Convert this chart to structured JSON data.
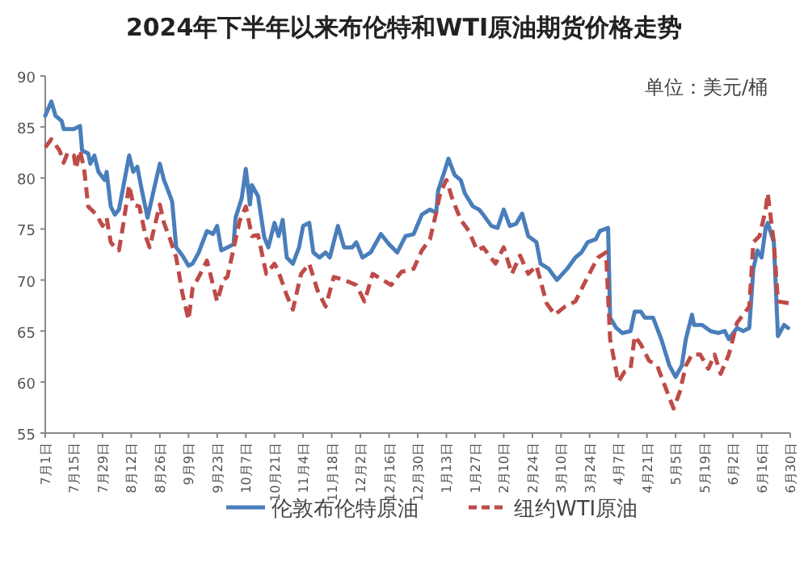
{
  "chart_data": {
    "type": "line",
    "title": "2024年下半年以来布伦特和WTI原油期货价格走势",
    "annotations": [
      "单位：美元/桶"
    ],
    "xlim": [
      "2024-07-01",
      "2025-06-30"
    ],
    "xticks": [
      {
        "value": "2024-07-01",
        "label": "7月1日"
      },
      {
        "value": "2024-07-15",
        "label": "7月15日"
      },
      {
        "value": "2024-07-29",
        "label": "7月29日"
      },
      {
        "value": "2024-08-12",
        "label": "8月12日"
      },
      {
        "value": "2024-08-26",
        "label": "8月26日"
      },
      {
        "value": "2024-09-09",
        "label": "9月9日"
      },
      {
        "value": "2024-09-23",
        "label": "9月23日"
      },
      {
        "value": "2024-10-07",
        "label": "10月7日"
      },
      {
        "value": "2024-10-21",
        "label": "10月21日"
      },
      {
        "value": "2024-11-04",
        "label": "11月4日"
      },
      {
        "value": "2024-11-18",
        "label": "11月18日"
      },
      {
        "value": "2024-12-02",
        "label": "12月2日"
      },
      {
        "value": "2024-12-16",
        "label": "12月16日"
      },
      {
        "value": "2024-12-30",
        "label": "12月30日"
      },
      {
        "value": "2025-01-13",
        "label": "1月13日"
      },
      {
        "value": "2025-01-27",
        "label": "1月27日"
      },
      {
        "value": "2025-02-10",
        "label": "2月10日"
      },
      {
        "value": "2025-02-24",
        "label": "2月24日"
      },
      {
        "value": "2025-03-10",
        "label": "3月10日"
      },
      {
        "value": "2025-03-24",
        "label": "3月24日"
      },
      {
        "value": "2025-04-07",
        "label": "4月7日"
      },
      {
        "value": "2025-04-21",
        "label": "4月21日"
      },
      {
        "value": "2025-05-05",
        "label": "5月5日"
      },
      {
        "value": "2025-05-19",
        "label": "5月19日"
      },
      {
        "value": "2025-06-02",
        "label": "6月2日"
      },
      {
        "value": "2025-06-16",
        "label": "6月16日"
      },
      {
        "value": "2025-06-30",
        "label": "6月30日"
      }
    ],
    "ylim": [
      55,
      90
    ],
    "yticks": [
      55,
      60,
      65,
      70,
      75,
      80,
      85,
      90
    ],
    "legend": "bottom",
    "series": [
      {
        "name": "伦敦布伦特原油",
        "color": "#4a7ebb",
        "line_style": "solid",
        "x": [
          "2024-07-01",
          "2024-07-04",
          "2024-07-06",
          "2024-07-09",
          "2024-07-10",
          "2024-07-15",
          "2024-07-18",
          "2024-07-19",
          "2024-07-22",
          "2024-07-23",
          "2024-07-25",
          "2024-07-27",
          "2024-07-30",
          "2024-07-31",
          "2024-08-02",
          "2024-08-04",
          "2024-08-06",
          "2024-08-08",
          "2024-08-11",
          "2024-08-13",
          "2024-08-15",
          "2024-08-17",
          "2024-08-20",
          "2024-08-23",
          "2024-08-26",
          "2024-08-28",
          "2024-08-29",
          "2024-09-01",
          "2024-09-03",
          "2024-09-06",
          "2024-09-09",
          "2024-09-11",
          "2024-09-14",
          "2024-09-18",
          "2024-09-21",
          "2024-09-23",
          "2024-09-25",
          "2024-09-28",
          "2024-10-01",
          "2024-10-02",
          "2024-10-05",
          "2024-10-07",
          "2024-10-09",
          "2024-10-10",
          "2024-10-13",
          "2024-10-16",
          "2024-10-18",
          "2024-10-21",
          "2024-10-23",
          "2024-10-25",
          "2024-10-27",
          "2024-10-30",
          "2024-11-02",
          "2024-11-04",
          "2024-11-07",
          "2024-11-09",
          "2024-11-12",
          "2024-11-15",
          "2024-11-17",
          "2024-11-21",
          "2024-11-24",
          "2024-11-28",
          "2024-11-30",
          "2024-12-03",
          "2024-12-07",
          "2024-12-12",
          "2024-12-16",
          "2024-12-20",
          "2024-12-24",
          "2024-12-28",
          "2025-01-01",
          "2025-01-05",
          "2025-01-08",
          "2025-01-09",
          "2025-01-12",
          "2025-01-14",
          "2025-01-17",
          "2025-01-20",
          "2025-01-22",
          "2025-01-26",
          "2025-01-29",
          "2025-01-31",
          "2025-02-04",
          "2025-02-07",
          "2025-02-10",
          "2025-02-13",
          "2025-02-16",
          "2025-02-19",
          "2025-02-22",
          "2025-02-26",
          "2025-02-28",
          "2025-03-04",
          "2025-03-08",
          "2025-03-13",
          "2025-03-17",
          "2025-03-20",
          "2025-03-23",
          "2025-03-27",
          "2025-03-29",
          "2025-04-02",
          "2025-04-03",
          "2025-04-06",
          "2025-04-09",
          "2025-04-13",
          "2025-04-15",
          "2025-04-18",
          "2025-04-20",
          "2025-04-24",
          "2025-04-28",
          "2025-05-02",
          "2025-05-05",
          "2025-05-08",
          "2025-05-10",
          "2025-05-13",
          "2025-05-14",
          "2025-05-18",
          "2025-05-22",
          "2025-05-26",
          "2025-05-29",
          "2025-05-31",
          "2025-06-04",
          "2025-06-07",
          "2025-06-10",
          "2025-06-12",
          "2025-06-14",
          "2025-06-16",
          "2025-06-18",
          "2025-06-19",
          "2025-06-22",
          "2025-06-24",
          "2025-06-27",
          "2025-06-29"
        ],
        "values": [
          86.1,
          87.5,
          86.1,
          85.6,
          84.8,
          84.8,
          85.1,
          82.7,
          82.4,
          81.4,
          82.2,
          80.6,
          79.8,
          80.6,
          77.2,
          76.4,
          76.9,
          79.0,
          82.2,
          80.6,
          81.1,
          79.0,
          76.1,
          78.8,
          81.4,
          79.8,
          79.3,
          77.7,
          73.2,
          72.4,
          71.4,
          71.6,
          72.7,
          74.8,
          74.5,
          75.3,
          72.9,
          73.2,
          73.5,
          76.1,
          78.0,
          80.9,
          77.4,
          79.3,
          78.2,
          74.2,
          73.2,
          75.6,
          74.3,
          75.9,
          72.2,
          71.6,
          73.2,
          75.3,
          75.6,
          72.7,
          72.2,
          72.7,
          72.2,
          75.3,
          73.2,
          73.2,
          73.7,
          72.2,
          72.7,
          74.5,
          73.5,
          72.7,
          74.3,
          74.5,
          76.4,
          76.9,
          76.6,
          78.8,
          80.6,
          81.9,
          80.3,
          79.8,
          78.5,
          77.2,
          76.9,
          76.4,
          75.3,
          75.1,
          76.9,
          75.3,
          75.5,
          76.5,
          74.3,
          73.7,
          71.6,
          71.1,
          70.0,
          71.1,
          72.2,
          72.7,
          73.7,
          74.0,
          74.8,
          75.1,
          66.3,
          65.3,
          64.8,
          65.0,
          66.9,
          66.9,
          66.3,
          66.3,
          64.2,
          61.6,
          60.5,
          61.6,
          64.2,
          66.6,
          65.6,
          65.6,
          65.0,
          64.8,
          65.0,
          64.2,
          65.3,
          65.0,
          65.3,
          71.1,
          72.9,
          72.2,
          75.1,
          75.6,
          73.7,
          64.5,
          65.6,
          65.3
        ]
      },
      {
        "name": "纽约WTI原油",
        "color": "#be4b48",
        "line_style": "dashed",
        "x": [
          "2024-07-01",
          "2024-07-04",
          "2024-07-08",
          "2024-07-10",
          "2024-07-12",
          "2024-07-15",
          "2024-07-16",
          "2024-07-18",
          "2024-07-20",
          "2024-07-22",
          "2024-07-26",
          "2024-07-29",
          "2024-07-31",
          "2024-08-02",
          "2024-08-04",
          "2024-08-06",
          "2024-08-08",
          "2024-08-11",
          "2024-08-13",
          "2024-08-16",
          "2024-08-19",
          "2024-08-21",
          "2024-08-26",
          "2024-08-28",
          "2024-08-31",
          "2024-09-03",
          "2024-09-06",
          "2024-09-09",
          "2024-09-11",
          "2024-09-14",
          "2024-09-18",
          "2024-09-23",
          "2024-09-26",
          "2024-09-28",
          "2024-10-04",
          "2024-10-07",
          "2024-10-10",
          "2024-10-13",
          "2024-10-17",
          "2024-10-21",
          "2024-10-23",
          "2024-10-27",
          "2024-10-30",
          "2024-11-03",
          "2024-11-07",
          "2024-11-11",
          "2024-11-15",
          "2024-11-19",
          "2024-11-24",
          "2024-11-30",
          "2024-12-04",
          "2024-12-08",
          "2024-12-13",
          "2024-12-17",
          "2024-12-22",
          "2024-12-28",
          "2025-01-01",
          "2025-01-05",
          "2025-01-08",
          "2025-01-10",
          "2025-01-13",
          "2025-01-16",
          "2025-01-20",
          "2025-01-24",
          "2025-01-28",
          "2025-01-31",
          "2025-02-06",
          "2025-02-10",
          "2025-02-14",
          "2025-02-18",
          "2025-02-22",
          "2025-02-26",
          "2025-03-03",
          "2025-03-07",
          "2025-03-12",
          "2025-03-17",
          "2025-03-23",
          "2025-03-28",
          "2025-04-01",
          "2025-04-03",
          "2025-04-07",
          "2025-04-10",
          "2025-04-13",
          "2025-04-15",
          "2025-04-18",
          "2025-04-22",
          "2025-04-26",
          "2025-04-30",
          "2025-05-04",
          "2025-05-07",
          "2025-05-10",
          "2025-05-13",
          "2025-05-17",
          "2025-05-21",
          "2025-05-24",
          "2025-05-27",
          "2025-05-31",
          "2025-06-04",
          "2025-06-10",
          "2025-06-12",
          "2025-06-15",
          "2025-06-18",
          "2025-06-19",
          "2025-06-22",
          "2025-06-24",
          "2025-06-30"
        ],
        "values": [
          83.0,
          83.8,
          82.7,
          81.5,
          82.5,
          82.2,
          80.9,
          82.7,
          80.9,
          77.2,
          76.4,
          75.3,
          76.1,
          73.7,
          73.2,
          72.9,
          75.3,
          79.3,
          77.4,
          77.2,
          74.3,
          73.2,
          77.4,
          75.6,
          74.0,
          72.2,
          68.7,
          66.1,
          69.2,
          70.3,
          71.9,
          67.9,
          70.0,
          70.3,
          75.8,
          77.2,
          74.3,
          74.4,
          70.6,
          71.6,
          70.8,
          68.5,
          67.1,
          70.6,
          71.6,
          69.0,
          67.4,
          70.3,
          70.0,
          69.5,
          67.9,
          70.6,
          70.0,
          69.5,
          70.8,
          71.1,
          72.9,
          74.0,
          76.6,
          78.5,
          79.8,
          77.9,
          75.9,
          74.8,
          72.9,
          73.2,
          71.6,
          73.2,
          70.6,
          72.4,
          70.6,
          71.4,
          67.7,
          66.6,
          67.4,
          67.9,
          70.3,
          72.2,
          72.7,
          64.2,
          60.0,
          61.0,
          61.3,
          64.5,
          63.7,
          62.1,
          61.6,
          59.5,
          57.4,
          59.0,
          61.6,
          62.7,
          62.7,
          61.3,
          62.7,
          60.8,
          62.7,
          65.8,
          67.4,
          73.7,
          74.3,
          76.9,
          78.5,
          73.7,
          67.9,
          67.7
        ]
      }
    ]
  }
}
